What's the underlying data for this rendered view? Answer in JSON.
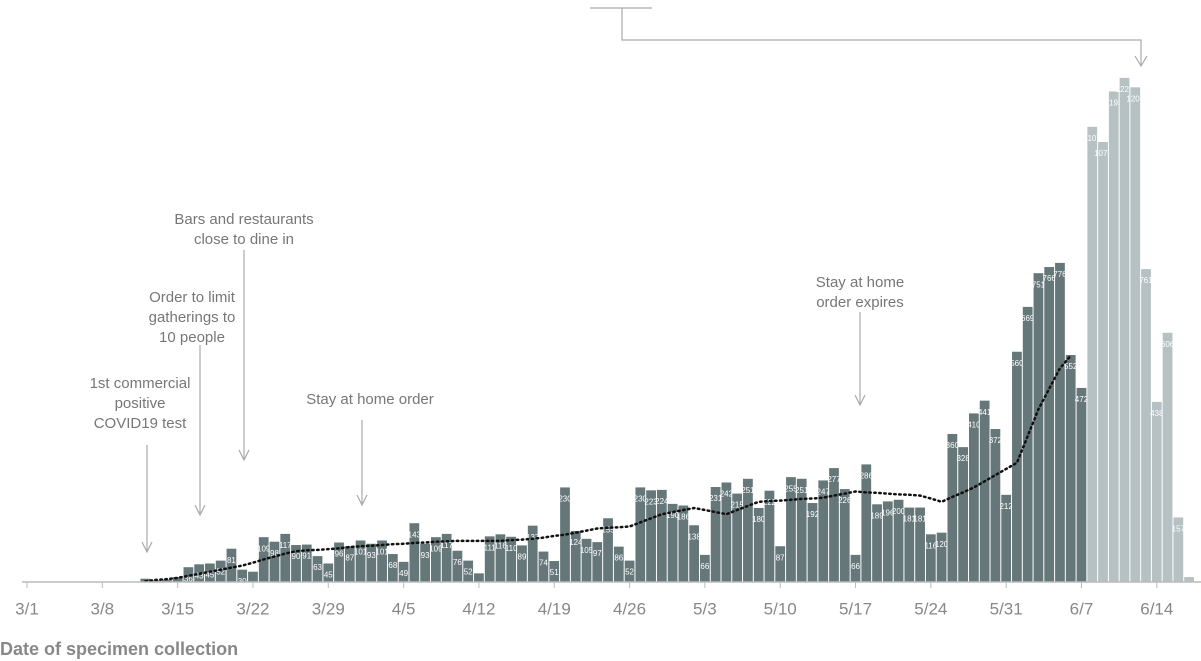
{
  "chart_data": {
    "type": "bar",
    "x": [
      "3/1",
      "3/2",
      "3/3",
      "3/4",
      "3/5",
      "3/6",
      "3/7",
      "3/8",
      "3/9",
      "3/10",
      "3/11",
      "3/12",
      "3/13",
      "3/14",
      "3/15",
      "3/16",
      "3/17",
      "3/18",
      "3/19",
      "3/20",
      "3/21",
      "3/22",
      "3/23",
      "3/24",
      "3/25",
      "3/26",
      "3/27",
      "3/28",
      "3/29",
      "3/30",
      "3/31",
      "4/1",
      "4/2",
      "4/3",
      "4/4",
      "4/5",
      "4/6",
      "4/7",
      "4/8",
      "4/9",
      "4/10",
      "4/11",
      "4/12",
      "4/13",
      "4/14",
      "4/15",
      "4/16",
      "4/17",
      "4/18",
      "4/19",
      "4/20",
      "4/21",
      "4/22",
      "4/23",
      "4/24",
      "4/25",
      "4/26",
      "4/27",
      "4/28",
      "4/29",
      "4/30",
      "5/1",
      "5/2",
      "5/3",
      "5/4",
      "5/5",
      "5/6",
      "5/7",
      "5/8",
      "5/9",
      "5/10",
      "5/11",
      "5/12",
      "5/13",
      "5/14",
      "5/15",
      "5/16",
      "5/17",
      "5/18",
      "5/19",
      "5/20",
      "5/21",
      "5/22",
      "5/23",
      "5/24",
      "5/25",
      "5/26",
      "5/27",
      "5/28",
      "5/29",
      "5/30",
      "5/31",
      "6/1",
      "6/2",
      "6/3",
      "6/4",
      "6/5",
      "6/6",
      "6/7",
      "6/8",
      "6/9",
      "6/10",
      "6/11",
      "6/12",
      "6/13",
      "6/14",
      "6/15",
      "6/16",
      "6/17"
    ],
    "series": [
      {
        "color": "#66777a",
        "values": [
          0,
          0,
          0,
          0,
          0,
          0,
          0,
          0,
          0,
          0,
          0,
          8,
          4,
          6,
          12,
          36,
          43,
          45,
          52,
          81,
          30,
          25,
          109,
          98,
          117,
          90,
          91,
          63,
          45,
          96,
          87,
          101,
          93,
          101,
          68,
          49,
          143,
          93,
          109,
          117,
          76,
          52,
          21,
          111,
          116,
          110,
          89,
          137,
          74,
          51,
          230,
          124,
          105,
          97,
          155,
          86,
          52,
          230,
          223,
          224,
          190,
          186,
          138,
          66,
          231,
          242,
          215,
          251,
          180,
          222,
          87,
          255,
          251,
          192,
          247,
          277,
          226,
          66,
          286,
          189,
          196,
          200,
          181,
          181,
          116,
          120,
          360,
          328,
          410,
          441,
          372,
          212,
          560,
          669,
          751,
          766,
          776,
          552,
          472,
          null,
          null,
          null,
          null,
          null,
          null,
          null,
          null,
          null,
          null
        ]
      },
      {
        "color": "#b5c1c3",
        "values": [
          null,
          null,
          null,
          null,
          null,
          null,
          null,
          null,
          null,
          null,
          null,
          null,
          null,
          null,
          null,
          null,
          null,
          null,
          null,
          null,
          null,
          null,
          null,
          null,
          null,
          null,
          null,
          null,
          null,
          null,
          null,
          null,
          null,
          null,
          null,
          null,
          null,
          null,
          null,
          null,
          null,
          null,
          null,
          null,
          null,
          null,
          null,
          null,
          null,
          null,
          null,
          null,
          null,
          null,
          null,
          null,
          null,
          null,
          null,
          null,
          null,
          null,
          null,
          null,
          null,
          null,
          null,
          null,
          null,
          null,
          null,
          null,
          null,
          null,
          null,
          null,
          null,
          null,
          null,
          null,
          null,
          null,
          null,
          null,
          null,
          null,
          null,
          null,
          null,
          null,
          null,
          null,
          null,
          null,
          null,
          null,
          null,
          null,
          null,
          1107,
          1070,
          1193,
          1226,
          1203,
          761,
          438,
          606,
          157,
          12
        ]
      },
      {
        "type": "line",
        "color": "#111111",
        "values": [
          null,
          null,
          null,
          null,
          null,
          null,
          null,
          null,
          null,
          null,
          null,
          2,
          5,
          7,
          10,
          15,
          20,
          25,
          30,
          35,
          40,
          47,
          55,
          62,
          69,
          75,
          77,
          78,
          80,
          82,
          85,
          87,
          88,
          90,
          92,
          93,
          95,
          96,
          98,
          99,
          100,
          100,
          100,
          100,
          100,
          102,
          103,
          105,
          108,
          112,
          115,
          120,
          125,
          130,
          132,
          133,
          135,
          145,
          155,
          165,
          170,
          175,
          180,
          175,
          170,
          165,
          175,
          185,
          195,
          197,
          198,
          200,
          202,
          203,
          205,
          210,
          215,
          220,
          218,
          217,
          215,
          213,
          212,
          210,
          203,
          195,
          207,
          218,
          230,
          245,
          260,
          275,
          290,
          355,
          420,
          470,
          520,
          550,
          null,
          null,
          null,
          null,
          null,
          null,
          null,
          null,
          null,
          null,
          null
        ]
      }
    ],
    "ylim": [
      0,
      1250
    ],
    "xticks": [
      "3/1",
      "3/8",
      "3/15",
      "3/22",
      "3/29",
      "4/5",
      "4/12",
      "4/19",
      "4/26",
      "5/3",
      "5/10",
      "5/17",
      "5/24",
      "5/31",
      "6/7",
      "6/14"
    ],
    "x_label": "Date of specimen collection",
    "annotations": [
      {
        "text": [
          "1st commercial",
          "positive",
          "COVID19 test"
        ]
      },
      {
        "text": [
          "Order to limit",
          "gatherings to",
          "10 people"
        ]
      },
      {
        "text": [
          "Bars and restaurants",
          "close to dine in"
        ]
      },
      {
        "text": [
          "Stay at home order"
        ]
      },
      {
        "text": [
          "Stay at home",
          "order expires"
        ]
      }
    ]
  }
}
